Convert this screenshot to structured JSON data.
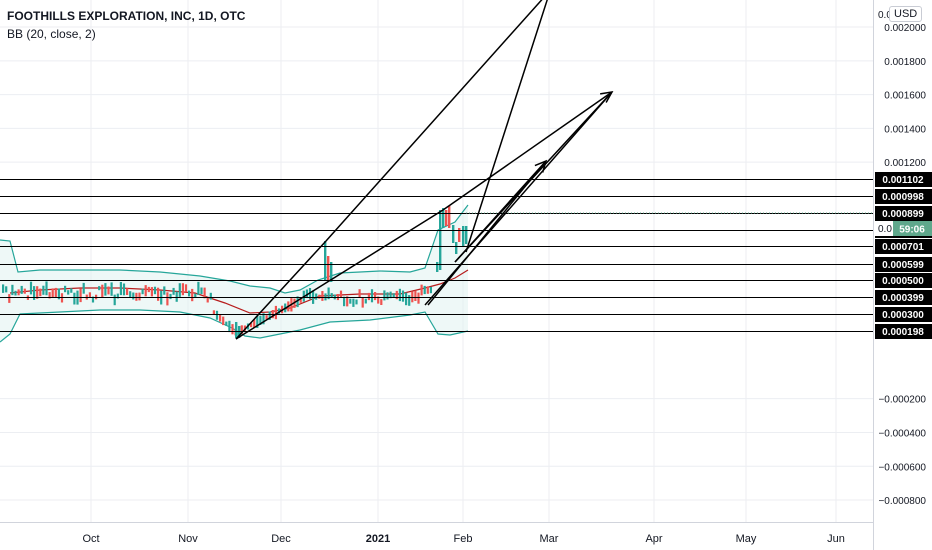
{
  "header": {
    "title": "FOOTHILLS EXPLORATION, INC, 1D, OTC",
    "indicator": "BB (20, close, 2)",
    "currency": "USD"
  },
  "chart_data": {
    "type": "candlestick",
    "symbol": "FOOTHILLS EXPLORATION, INC",
    "interval": "1D",
    "exchange": "OTC",
    "indicator": "BB (20, close, 2)",
    "x_ticks": [
      "Oct",
      "Nov",
      "Dec",
      "2021",
      "Feb",
      "Mar",
      "Apr",
      "May",
      "Jun"
    ],
    "y_ticks": [
      "0.002000",
      "0.001800",
      "0.001600",
      "0.001400",
      "0.001200",
      "−0.000200",
      "−0.000400",
      "−0.000600",
      "−0.000800"
    ],
    "ylim": [
      -0.00093,
      0.00216
    ],
    "top_partial_label": "0.0",
    "horizontal_levels": [
      "0.001102",
      "0.000998",
      "0.000900",
      "0.000899",
      "0.000800",
      "0.000701",
      "0.000599",
      "0.000500",
      "0.000399",
      "0.000300",
      "0.000198"
    ],
    "current_price": "0.000900",
    "countdown": "59:06",
    "countdown_prefix": "0.0",
    "colors": {
      "up": "#26a69a",
      "down": "#ef5350",
      "band": "#26a69a",
      "band_fill": "#e0f2f1",
      "basis": "#b71c1c",
      "drawing": "#000000",
      "grid": "#eceef2",
      "price_tag": "#5fa88c"
    }
  }
}
